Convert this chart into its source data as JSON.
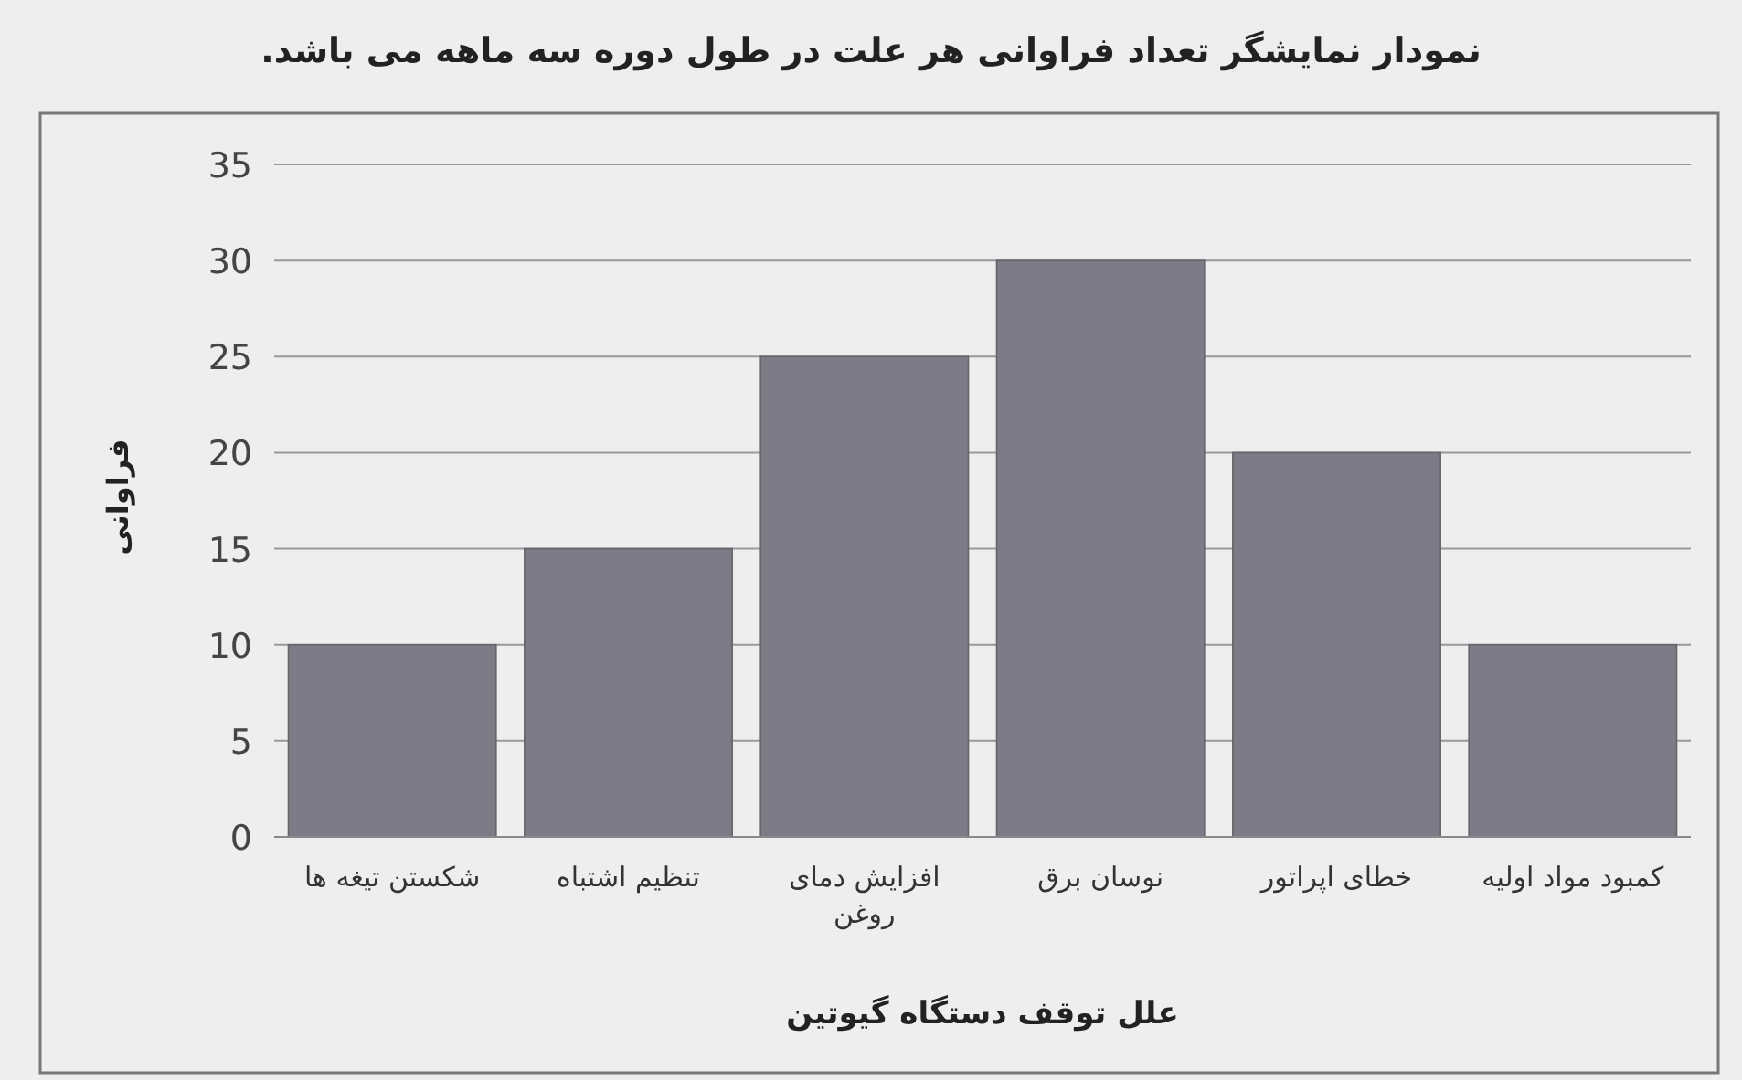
{
  "chart_data": {
    "type": "bar",
    "title": "نمودار نمایشگر تعداد فراوانی هر علت در طول دوره سه ماهه می باشد.",
    "xlabel": "علل توقف دستگاه گیوتین",
    "ylabel": "فراوانی",
    "categories": [
      "شکستن تیغه ها",
      "تنظیم اشتباه",
      "افزایش دمای روغن",
      "نوسان برق",
      "خطای اپراتور",
      "کمبود مواد اولیه"
    ],
    "values": [
      10,
      15,
      25,
      30,
      20,
      10
    ],
    "color": "#7d7b88",
    "ylim": [
      0,
      35
    ],
    "yticks": [
      0,
      5,
      10,
      15,
      20,
      25,
      30,
      35
    ],
    "grid": "y"
  }
}
